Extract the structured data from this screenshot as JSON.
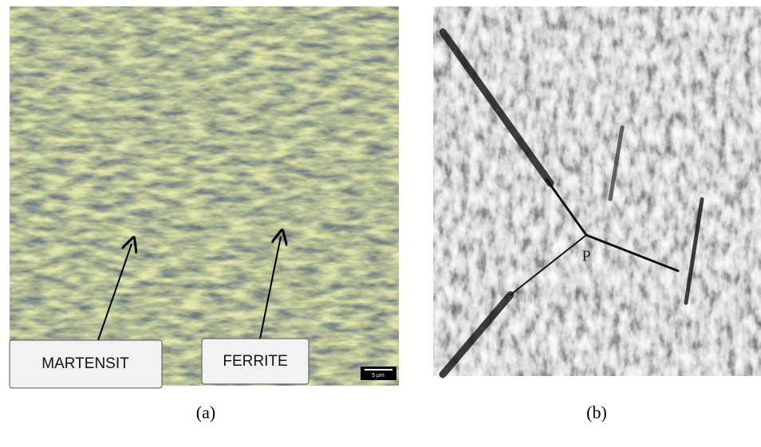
{
  "panel_a": {
    "caption": "(a)",
    "label_martensite": "MARTENSIT",
    "label_ferrite": "FERRITE",
    "scale_bar": "5 µm"
  },
  "panel_b": {
    "caption": "(b)",
    "mark": "P"
  }
}
